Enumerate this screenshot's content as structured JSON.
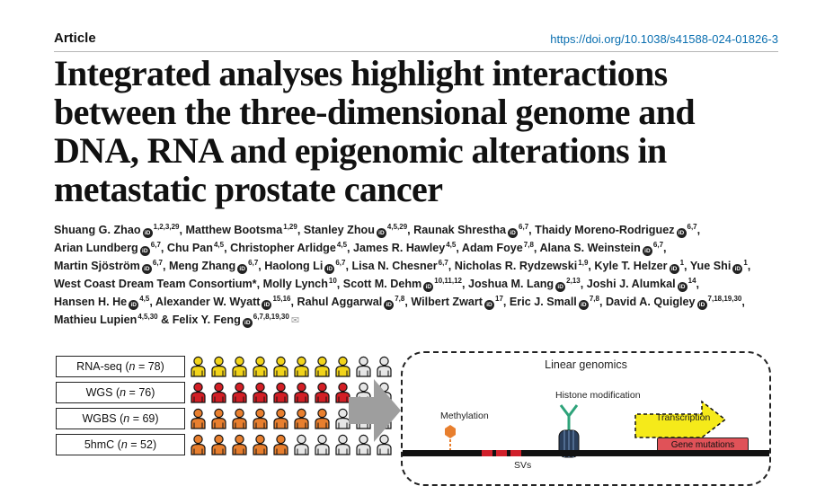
{
  "header": {
    "type_label": "Article",
    "doi": "https://doi.org/10.1038/s41588-024-01826-3"
  },
  "title": "Integrated analyses highlight interactions between the three-dimensional genome and DNA, RNA and epigenomic alterations in metastatic prostate cancer",
  "authors": [
    {
      "name": "Shuang G. Zhao",
      "sup": "1,2,3,29",
      "orcid": true
    },
    {
      "name": "Matthew Bootsma",
      "sup": "1,29",
      "orcid": false
    },
    {
      "name": "Stanley Zhou",
      "sup": "4,5,29",
      "orcid": true
    },
    {
      "name": "Raunak Shrestha",
      "sup": "6,7",
      "orcid": true
    },
    {
      "name": "Thaidy Moreno-Rodriguez",
      "sup": "6,7",
      "orcid": true
    },
    {
      "name": "Arian Lundberg",
      "sup": "6,7",
      "orcid": true
    },
    {
      "name": "Chu Pan",
      "sup": "4,5",
      "orcid": false
    },
    {
      "name": "Christopher Arlidge",
      "sup": "4,5",
      "orcid": false
    },
    {
      "name": "James R. Hawley",
      "sup": "4,5",
      "orcid": false
    },
    {
      "name": "Adam Foye",
      "sup": "7,8",
      "orcid": false
    },
    {
      "name": "Alana S. Weinstein",
      "sup": "6,7",
      "orcid": true
    },
    {
      "name": "Martin Sjöström",
      "sup": "6,7",
      "orcid": true
    },
    {
      "name": "Meng Zhang",
      "sup": "6,7",
      "orcid": true
    },
    {
      "name": "Haolong Li",
      "sup": "6,7",
      "orcid": true
    },
    {
      "name": "Lisa N. Chesner",
      "sup": "6,7",
      "orcid": false
    },
    {
      "name": "Nicholas R. Rydzewski",
      "sup": "1,9",
      "orcid": false
    },
    {
      "name": "Kyle T. Helzer",
      "sup": "1",
      "orcid": true
    },
    {
      "name": "Yue Shi",
      "sup": "1",
      "orcid": true
    },
    {
      "name": "West Coast Dream Team Consortium*",
      "sup": "",
      "orcid": false
    },
    {
      "name": "Molly Lynch",
      "sup": "10",
      "orcid": false
    },
    {
      "name": "Scott M. Dehm",
      "sup": "10,11,12",
      "orcid": true
    },
    {
      "name": "Joshua M. Lang",
      "sup": "2,13",
      "orcid": true
    },
    {
      "name": "Joshi J. Alumkal",
      "sup": "14",
      "orcid": true
    },
    {
      "name": "Hansen H. He",
      "sup": "4,5",
      "orcid": true
    },
    {
      "name": "Alexander W. Wyatt",
      "sup": "15,16",
      "orcid": true
    },
    {
      "name": "Rahul Aggarwal",
      "sup": "7,8",
      "orcid": true
    },
    {
      "name": "Wilbert Zwart",
      "sup": "17",
      "orcid": true
    },
    {
      "name": "Eric J. Small",
      "sup": "7,8",
      "orcid": true
    },
    {
      "name": "David A. Quigley",
      "sup": "7,18,19,30",
      "orcid": true
    },
    {
      "name": "Mathieu Lupien",
      "sup": "4,5,30",
      "orcid": false
    },
    {
      "name": "Felix Y. Feng",
      "sup": "6,7,8,19,30",
      "orcid": true,
      "last": true
    }
  ],
  "figure": {
    "cohorts": [
      {
        "assay": "RNA-seq",
        "n_label": "n",
        "n_value": "78",
        "filled": 8,
        "color": "#f2d41a"
      },
      {
        "assay": "WGS",
        "n_label": "n",
        "n_value": "76",
        "filled": 8,
        "color": "#d31e25"
      },
      {
        "assay": "WGBS",
        "n_label": "n",
        "n_value": "69",
        "filled": 7,
        "color": "#e87f2e"
      },
      {
        "assay": "5hmC",
        "n_label": "n",
        "n_value": "52",
        "filled": 5,
        "color": "#e87f2e"
      }
    ],
    "empty_color": "#e6e6e6",
    "panel": {
      "title": "Linear genomics",
      "histone_label": "Histone modification",
      "methylation_label": "Methylation",
      "transcription_label": "Transcription",
      "gene_mutations_label": "Gene mutations",
      "sv_label": "SVs"
    }
  }
}
